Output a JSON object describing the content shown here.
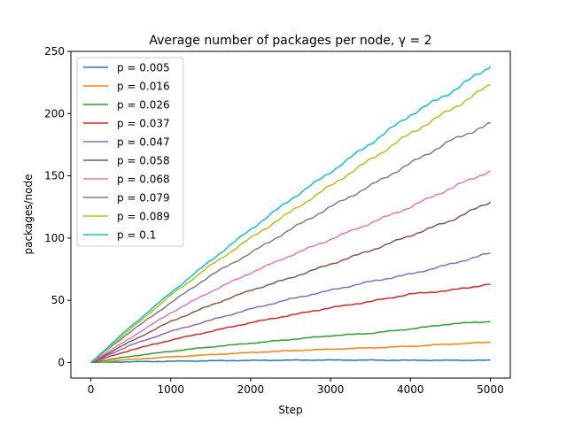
{
  "chart_data": {
    "type": "line",
    "title": "Average number of packages per node, γ = 2",
    "xlabel": "Step",
    "ylabel": "packages/node",
    "xlim": [
      -250,
      5250
    ],
    "ylim": [
      -12.5,
      250
    ],
    "xticks": [
      0,
      1000,
      2000,
      3000,
      4000,
      5000
    ],
    "yticks": [
      0,
      50,
      100,
      150,
      200,
      250
    ],
    "grid": false,
    "legend": "top-left",
    "x": [
      0,
      500,
      1000,
      1500,
      2000,
      2500,
      3000,
      3500,
      4000,
      4500,
      5000
    ],
    "series": [
      {
        "name": "p = 0.005",
        "color": "#1f77b4",
        "values": [
          0,
          0.6,
          1.0,
          1.4,
          1.7,
          1.9,
          2.0,
          1.9,
          1.8,
          1.8,
          1.8
        ]
      },
      {
        "name": "p = 0.016",
        "color": "#ff7f0e",
        "values": [
          0,
          2.5,
          4.5,
          6.3,
          8.0,
          9.5,
          10.7,
          11.8,
          13.0,
          14.8,
          16.3
        ]
      },
      {
        "name": "p = 0.026",
        "color": "#2ca02c",
        "values": [
          0,
          5,
          9,
          12.5,
          15.5,
          18.5,
          21.5,
          23.5,
          27,
          31,
          33
        ]
      },
      {
        "name": "p = 0.037",
        "color": "#d62728",
        "values": [
          0,
          10,
          18,
          25,
          32,
          38,
          44,
          49,
          55,
          58,
          63
        ]
      },
      {
        "name": "p = 0.047",
        "color": "#9467bd",
        "values": [
          0,
          14,
          25,
          34,
          43,
          51,
          58,
          65,
          71,
          79,
          88
        ]
      },
      {
        "name": "p = 0.058",
        "color": "#8c564b",
        "values": [
          0,
          17,
          33,
          46,
          58,
          68,
          79,
          90,
          102,
          114,
          129
        ]
      },
      {
        "name": "p = 0.068",
        "color": "#e377c2",
        "values": [
          0,
          20,
          40,
          57,
          72,
          86,
          99,
          112,
          125,
          140,
          154
        ]
      },
      {
        "name": "p = 0.079",
        "color": "#7f7f7f",
        "values": [
          0,
          25,
          48,
          70,
          88,
          107,
          125,
          142,
          160,
          178,
          192
        ]
      },
      {
        "name": "p = 0.089",
        "color": "#bcbd22",
        "values": [
          0,
          27,
          54,
          78,
          100,
          121,
          142,
          163,
          184,
          203,
          223
        ]
      },
      {
        "name": "p = 0.1",
        "color": "#17becf",
        "values": [
          0,
          29,
          56,
          82,
          107,
          131,
          153,
          176,
          199,
          217,
          238
        ]
      }
    ]
  }
}
